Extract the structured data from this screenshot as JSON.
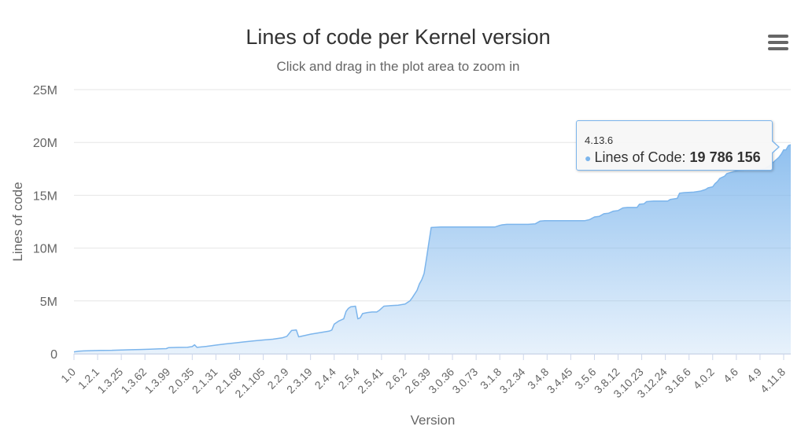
{
  "title": "Lines of code per Kernel version",
  "subtitle": "Click and drag in the plot area to zoom in",
  "menu": {
    "icon": "hamburger-menu-icon"
  },
  "colors": {
    "series": "#7cb5ec",
    "grid": "#e6e6e6",
    "text": "#666666",
    "title": "#333333"
  },
  "tooltip": {
    "header": "4.13.6",
    "series_label": "Lines of Code: ",
    "value": "19 786 156"
  },
  "chart_data": {
    "type": "area",
    "xlabel": "Version",
    "ylabel": "Lines of code",
    "ylim": [
      0,
      25000000
    ],
    "y_ticks": [
      {
        "value": 0,
        "label": "0"
      },
      {
        "value": 5000000,
        "label": "5M"
      },
      {
        "value": 10000000,
        "label": "10M"
      },
      {
        "value": 15000000,
        "label": "15M"
      },
      {
        "value": 20000000,
        "label": "20M"
      },
      {
        "value": 25000000,
        "label": "25M"
      }
    ],
    "x_ticks": [
      {
        "index": 0,
        "label": "1.0"
      },
      {
        "index": 10,
        "label": "1.2.1"
      },
      {
        "index": 20,
        "label": "1.3.25"
      },
      {
        "index": 30,
        "label": "1.3.62"
      },
      {
        "index": 40,
        "label": "1.3.99"
      },
      {
        "index": 50,
        "label": "2.0.35"
      },
      {
        "index": 60,
        "label": "2.1.31"
      },
      {
        "index": 70,
        "label": "2.1.68"
      },
      {
        "index": 80,
        "label": "2.1.105"
      },
      {
        "index": 90,
        "label": "2.2.9"
      },
      {
        "index": 100,
        "label": "2.3.19"
      },
      {
        "index": 110,
        "label": "2.4.4"
      },
      {
        "index": 120,
        "label": "2.5.4"
      },
      {
        "index": 130,
        "label": "2.5.41"
      },
      {
        "index": 140,
        "label": "2.6.2"
      },
      {
        "index": 150,
        "label": "2.6.39"
      },
      {
        "index": 160,
        "label": "3.0.36"
      },
      {
        "index": 170,
        "label": "3.0.73"
      },
      {
        "index": 180,
        "label": "3.1.8"
      },
      {
        "index": 190,
        "label": "3.2.34"
      },
      {
        "index": 200,
        "label": "3.4.8"
      },
      {
        "index": 210,
        "label": "3.4.45"
      },
      {
        "index": 220,
        "label": "3.5.6"
      },
      {
        "index": 230,
        "label": "3.8.12"
      },
      {
        "index": 240,
        "label": "3.10.23"
      },
      {
        "index": 250,
        "label": "3.12.24"
      },
      {
        "index": 260,
        "label": "3.16.6"
      },
      {
        "index": 270,
        "label": "4.0.2"
      },
      {
        "index": 280,
        "label": "4.6"
      },
      {
        "index": 290,
        "label": "4.9"
      },
      {
        "index": 300,
        "label": "4.11.8"
      }
    ],
    "x_max_index": 303,
    "series": [
      {
        "name": "Lines of Code",
        "points": [
          [
            0,
            180000
          ],
          [
            2,
            240000
          ],
          [
            4,
            270000
          ],
          [
            8,
            300000
          ],
          [
            12,
            320000
          ],
          [
            16,
            330000
          ],
          [
            20,
            360000
          ],
          [
            24,
            380000
          ],
          [
            28,
            400000
          ],
          [
            32,
            430000
          ],
          [
            36,
            460000
          ],
          [
            39,
            480000
          ],
          [
            40,
            580000
          ],
          [
            44,
            600000
          ],
          [
            48,
            620000
          ],
          [
            50,
            680000
          ],
          [
            51,
            850000
          ],
          [
            52,
            600000
          ],
          [
            56,
            700000
          ],
          [
            60,
            820000
          ],
          [
            64,
            930000
          ],
          [
            68,
            1020000
          ],
          [
            72,
            1120000
          ],
          [
            76,
            1220000
          ],
          [
            80,
            1300000
          ],
          [
            84,
            1380000
          ],
          [
            88,
            1500000
          ],
          [
            90,
            1650000
          ],
          [
            92,
            2200000
          ],
          [
            94,
            2250000
          ],
          [
            95,
            1600000
          ],
          [
            98,
            1750000
          ],
          [
            100,
            1850000
          ],
          [
            104,
            2000000
          ],
          [
            108,
            2150000
          ],
          [
            109,
            2250000
          ],
          [
            110,
            2800000
          ],
          [
            112,
            3100000
          ],
          [
            114,
            3300000
          ],
          [
            115,
            4000000
          ],
          [
            116,
            4300000
          ],
          [
            117,
            4450000
          ],
          [
            119,
            4500000
          ],
          [
            120,
            3300000
          ],
          [
            121,
            3400000
          ],
          [
            122,
            3800000
          ],
          [
            124,
            3900000
          ],
          [
            126,
            3950000
          ],
          [
            128,
            3950000
          ],
          [
            129,
            4100000
          ],
          [
            130,
            4300000
          ],
          [
            131,
            4500000
          ],
          [
            134,
            4550000
          ],
          [
            137,
            4600000
          ],
          [
            140,
            4700000
          ],
          [
            142,
            5000000
          ],
          [
            143,
            5300000
          ],
          [
            145,
            6000000
          ],
          [
            146,
            6600000
          ],
          [
            147,
            7000000
          ],
          [
            148,
            7600000
          ],
          [
            149,
            9000000
          ],
          [
            150,
            10500000
          ],
          [
            151,
            11950000
          ],
          [
            155,
            12000000
          ],
          [
            160,
            12000000
          ],
          [
            165,
            12000000
          ],
          [
            170,
            12000000
          ],
          [
            175,
            12000000
          ],
          [
            178,
            12000000
          ],
          [
            180,
            12150000
          ],
          [
            181,
            12200000
          ],
          [
            183,
            12250000
          ],
          [
            188,
            12250000
          ],
          [
            192,
            12250000
          ],
          [
            195,
            12300000
          ],
          [
            197,
            12550000
          ],
          [
            199,
            12600000
          ],
          [
            205,
            12600000
          ],
          [
            210,
            12600000
          ],
          [
            216,
            12600000
          ],
          [
            218,
            12700000
          ],
          [
            220,
            12950000
          ],
          [
            222,
            13000000
          ],
          [
            224,
            13250000
          ],
          [
            226,
            13300000
          ],
          [
            228,
            13500000
          ],
          [
            230,
            13550000
          ],
          [
            232,
            13800000
          ],
          [
            234,
            13850000
          ],
          [
            238,
            13850000
          ],
          [
            239,
            14150000
          ],
          [
            241,
            14200000
          ],
          [
            242,
            14400000
          ],
          [
            245,
            14450000
          ],
          [
            251,
            14450000
          ],
          [
            252,
            14600000
          ],
          [
            255,
            14700000
          ],
          [
            256,
            15200000
          ],
          [
            258,
            15250000
          ],
          [
            262,
            15300000
          ],
          [
            265,
            15400000
          ],
          [
            267,
            15550000
          ],
          [
            268,
            15700000
          ],
          [
            270,
            15800000
          ],
          [
            271,
            16100000
          ],
          [
            272,
            16300000
          ],
          [
            273,
            16600000
          ],
          [
            275,
            16800000
          ],
          [
            276,
            17050000
          ],
          [
            279,
            17250000
          ],
          [
            281,
            17350000
          ],
          [
            284,
            17400000
          ],
          [
            288,
            17450000
          ],
          [
            292,
            17500000
          ],
          [
            294,
            17800000
          ],
          [
            296,
            18200000
          ],
          [
            298,
            18600000
          ],
          [
            299,
            18900000
          ],
          [
            300,
            19300000
          ],
          [
            301,
            19300000
          ],
          [
            302,
            19700000
          ],
          [
            303,
            19786156
          ]
        ]
      }
    ],
    "grid": true,
    "legend": false
  }
}
